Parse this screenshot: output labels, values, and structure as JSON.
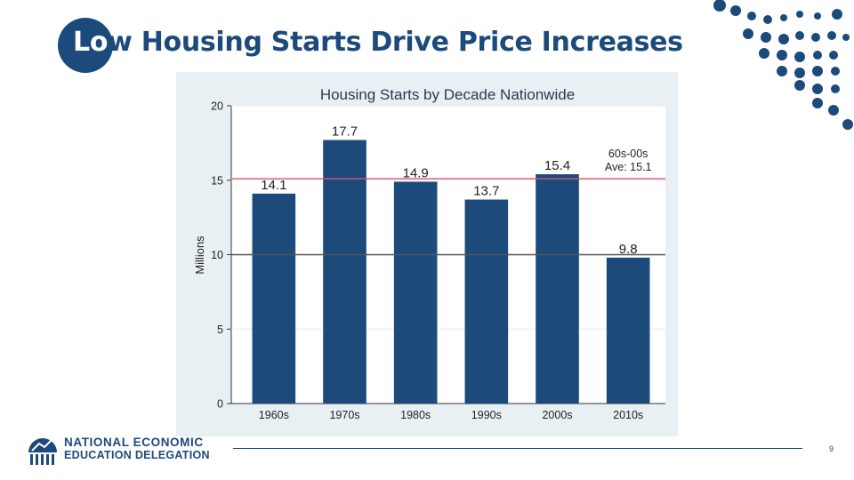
{
  "slide": {
    "title_lead": "Lo",
    "title_rest": "w Housing Starts Drive Price Increases",
    "page_number": "9"
  },
  "logo": {
    "line1": "NATIONAL ECONOMIC",
    "line2": "EDUCATION DELEGATION"
  },
  "colors": {
    "brand": "#1b4a7b",
    "bar": "#1b4a7b",
    "average_line": "#d9566b",
    "panel_background": "#e9f0f4",
    "plot_background": "#ffffff"
  },
  "chart_data": {
    "type": "bar",
    "title": "Housing Starts by Decade Nationwide",
    "ylabel": "Millions",
    "xlabel": "",
    "categories": [
      "1960s",
      "1970s",
      "1980s",
      "1990s",
      "2000s",
      "2010s"
    ],
    "values": [
      14.1,
      17.7,
      14.9,
      13.7,
      15.4,
      9.8
    ],
    "value_labels": [
      "14.1",
      "17.7",
      "14.9",
      "13.7",
      "15.4",
      "9.8"
    ],
    "ylim": [
      0,
      20
    ],
    "yticks": [
      0,
      5,
      10,
      15,
      20
    ],
    "ytick_labels": [
      "0",
      "5",
      "10",
      "15",
      "20"
    ],
    "grid": true,
    "reference_lines": [
      {
        "value": 15.1,
        "color": "#d9566b",
        "label_line1": "60s-00s",
        "label_line2": "Ave: 15.1"
      },
      {
        "value": 10,
        "color": "#555555"
      }
    ]
  }
}
